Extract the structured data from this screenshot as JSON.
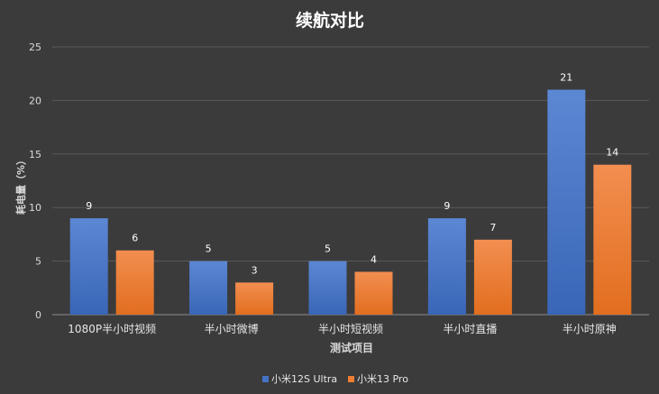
{
  "chart_data": {
    "type": "bar",
    "title": "续航对比",
    "xlabel": "测试项目",
    "ylabel": "耗电量（%）",
    "ylim": [
      0,
      25
    ],
    "yticks": [
      0,
      5,
      10,
      15,
      20,
      25
    ],
    "grid": true,
    "legend_position": "bottom",
    "categories": [
      "1080P半小时视频",
      "半小时微博",
      "半小时短视频",
      "半小时直播",
      "半小时原神"
    ],
    "series": [
      {
        "name": "小米12S Ultra",
        "values": [
          9,
          5,
          5,
          9,
          21
        ],
        "color": "#4472c4"
      },
      {
        "name": "小米13 Pro",
        "values": [
          6,
          3,
          4,
          7,
          14
        ],
        "color": "#ed7d31"
      }
    ]
  }
}
